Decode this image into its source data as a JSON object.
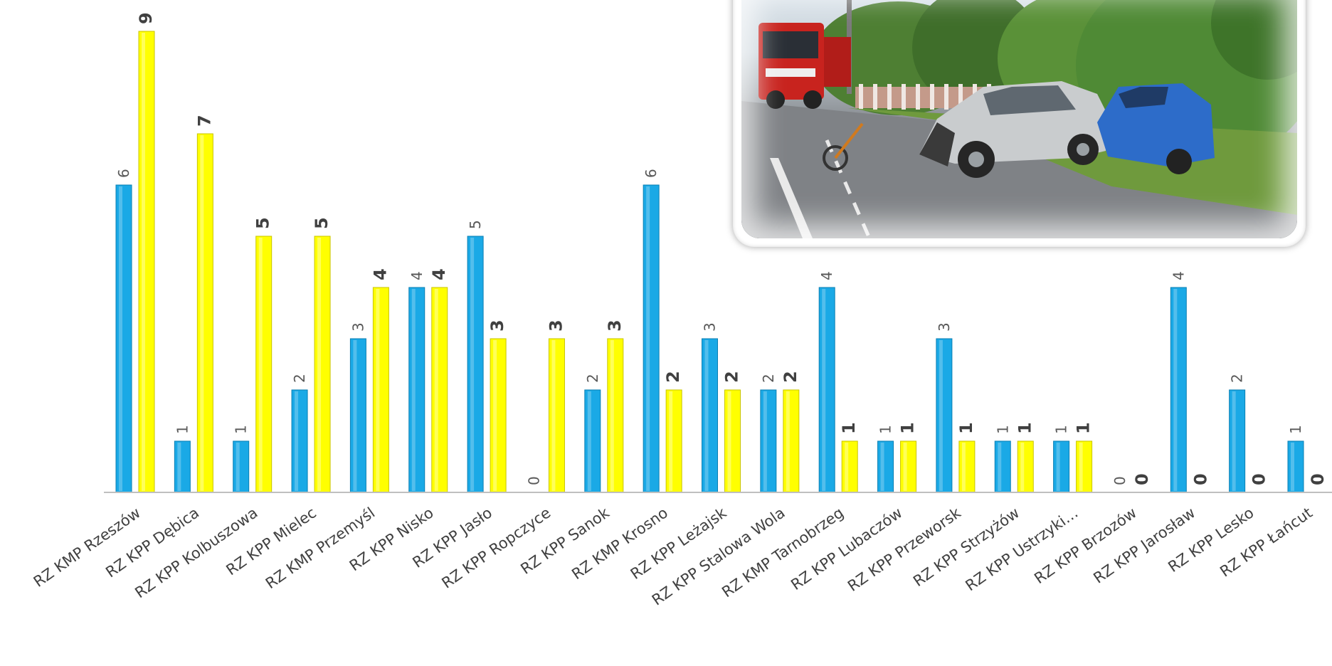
{
  "chart_data": {
    "type": "bar",
    "title": "",
    "xlabel": "",
    "ylabel": "",
    "ylim": [
      0,
      9
    ],
    "grid": false,
    "legend": "none",
    "categories": [
      "RZ KMP Rzeszów",
      "RZ KPP Dębica",
      "RZ KPP Kolbuszowa",
      "RZ KPP Mielec",
      "RZ KMP Przemyśl",
      "RZ KPP Nisko",
      "RZ KPP Jasło",
      "RZ KPP Ropczyce",
      "RZ KPP Sanok",
      "RZ KMP Krosno",
      "RZ KPP Leżajsk",
      "RZ KPP Stalowa Wola",
      "RZ KMP Tarnobrzeg",
      "RZ KPP Lubaczów",
      "RZ KPP Przeworsk",
      "RZ KPP Strzyżów",
      "RZ KPP Ustrzyki…",
      "RZ KPP Brzozów",
      "RZ KPP Jarosław",
      "RZ KPP Lesko",
      "RZ KPP Łańcut"
    ],
    "series": [
      {
        "color": "#1aa9e6",
        "values": [
          6,
          1,
          1,
          2,
          3,
          4,
          5,
          0,
          2,
          6,
          3,
          2,
          4,
          1,
          3,
          1,
          1,
          0,
          4,
          2,
          1
        ]
      },
      {
        "color": "#ffff00",
        "values": [
          9,
          7,
          5,
          5,
          4,
          4,
          3,
          3,
          3,
          2,
          2,
          2,
          1,
          1,
          1,
          1,
          1,
          0,
          0,
          0,
          0
        ]
      }
    ]
  },
  "photo": {
    "description_icon": "car-crash-photo",
    "colors": {
      "truck": "#c8231e",
      "car_silver": "#c9ccce",
      "car_blue": "#2d6cc9",
      "trees": "#4f8a35"
    }
  }
}
